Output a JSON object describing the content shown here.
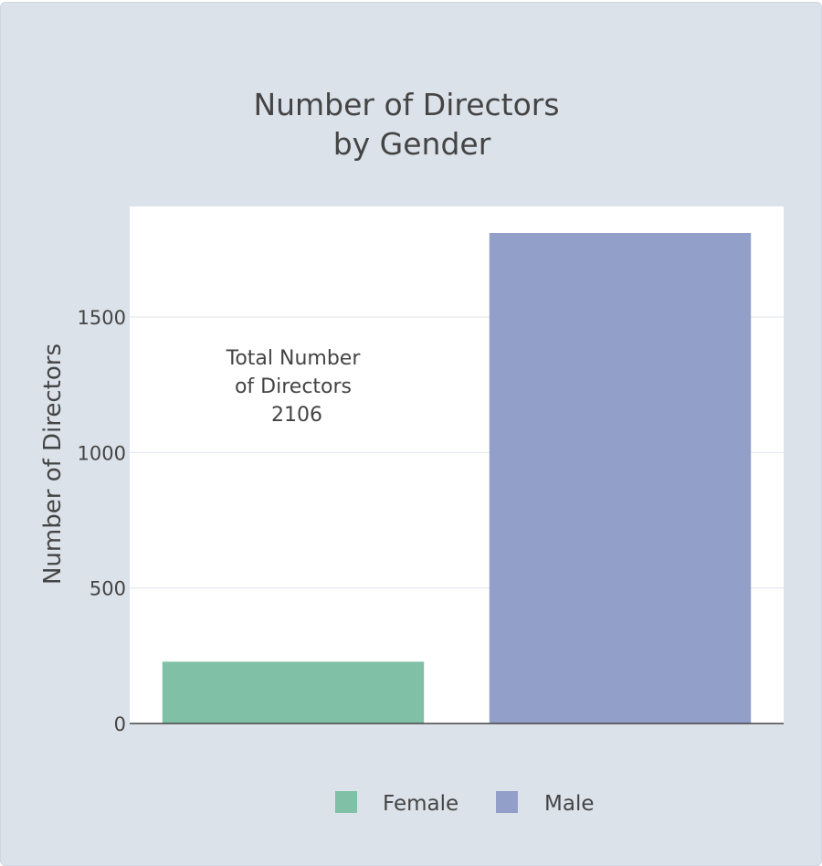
{
  "chart_data": {
    "type": "bar",
    "title_lines": [
      "Number of Directors",
      "by Gender"
    ],
    "ylabel": "Number of Directors",
    "xlabel": "",
    "ylim": [
      0,
      1810
    ],
    "yticks": [
      0,
      500,
      1000,
      1500
    ],
    "grid": true,
    "legend_position": "bottom",
    "series": [
      {
        "name": "Female",
        "value": 228,
        "color": "#7fc0a6"
      },
      {
        "name": "Male",
        "value": 1810,
        "color": "#929fc9"
      }
    ],
    "annotation_lines": [
      "Total Number",
      "of Directors",
      "2106"
    ]
  }
}
